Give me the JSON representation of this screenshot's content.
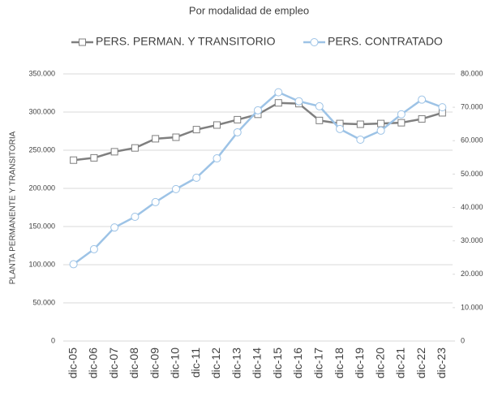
{
  "chart_data": {
    "type": "line",
    "title": "Por modalidad de empleo",
    "ylabel": "PLANTA PERMANENTE Y TRANSITORIA",
    "legend": "top",
    "grid": true,
    "categories": [
      "dic-05",
      "dic-06",
      "dic-07",
      "dic-08",
      "dic-09",
      "dic-10",
      "dic-11",
      "dic-12",
      "dic-13",
      "dic-14",
      "dic-15",
      "dic-16",
      "dic-17",
      "dic-18",
      "dic-19",
      "dic-20",
      "dic-21",
      "dic-22",
      "dic-23"
    ],
    "series": [
      {
        "name": "PERS. PERMAN. Y TRANSITORIO",
        "color": "#7f7f7f",
        "marker": "square",
        "values": [
          237000,
          240000,
          248000,
          253000,
          265000,
          267000,
          277000,
          283000,
          290000,
          297000,
          312000,
          311000,
          289000,
          285000,
          284000,
          285000,
          286000,
          291000,
          299000
        ]
      },
      {
        "name": "PERS. CONTRATADO",
        "color": "#9dc3e6",
        "marker": "circle",
        "axis": "y2",
        "values": [
          23000,
          27500,
          34000,
          37200,
          41600,
          45500,
          48900,
          54700,
          62500,
          69100,
          74500,
          71800,
          70300,
          63500,
          60300,
          63000,
          67900,
          72300,
          70000
        ]
      }
    ],
    "ylim": [
      0,
      350000
    ],
    "yticks": [
      0,
      {
        "value": 50000,
        "label": "50.000"
      },
      {
        "value": 100000,
        "label": "100.000"
      },
      {
        "value": 150000,
        "label": "150.000"
      },
      {
        "value": 200000,
        "label": "200.000"
      },
      {
        "value": 250000,
        "label": "250.000"
      },
      {
        "value": 300000,
        "label": "300.000"
      },
      {
        "value": 350000,
        "label": "350.000"
      }
    ],
    "y2lim": [
      0,
      80000
    ],
    "y2ticks": [
      0,
      {
        "value": 10000,
        "label": "10.000"
      },
      {
        "value": 20000,
        "label": "20.000"
      },
      {
        "value": 30000,
        "label": "30.000"
      },
      {
        "value": 40000,
        "label": "40.000"
      },
      {
        "value": 50000,
        "label": "50.000"
      },
      {
        "value": 60000,
        "label": "60.000"
      },
      {
        "value": 70000,
        "label": "70.000"
      },
      {
        "value": 80000,
        "label": "80.000"
      }
    ]
  }
}
